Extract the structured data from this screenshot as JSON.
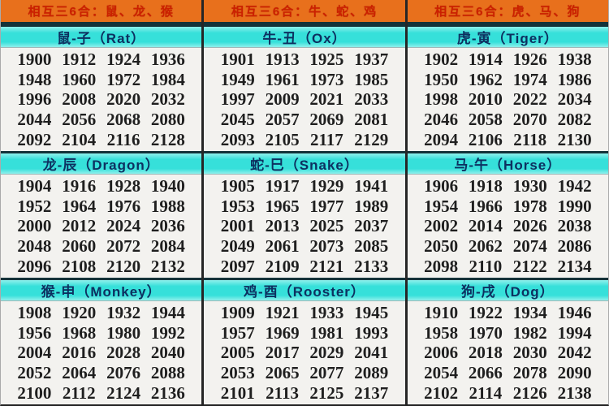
{
  "colors": {
    "orange_band": "#e8701c",
    "orange_text": "#cc2000",
    "cyan_band": "#3ee2dc",
    "zodiac_header_text": "#0d3060",
    "year_text": "#1f1f1f",
    "year_background": "#f3f2ef",
    "divider": "#262626"
  },
  "columns": [
    {
      "harmony_header": "相互三6合：鼠、龙、猴",
      "sections": [
        {
          "title": "鼠-子（Rat）",
          "years": [
            [
              "1900",
              "1912",
              "1924",
              "1936"
            ],
            [
              "1948",
              "1960",
              "1972",
              "1984"
            ],
            [
              "1996",
              "2008",
              "2020",
              "2032"
            ],
            [
              "2044",
              "2056",
              "2068",
              "2080"
            ],
            [
              "2092",
              "2104",
              "2116",
              "2128"
            ]
          ]
        },
        {
          "title": "龙-辰（Dragon）",
          "years": [
            [
              "1904",
              "1916",
              "1928",
              "1940"
            ],
            [
              "1952",
              "1964",
              "1976",
              "1988"
            ],
            [
              "2000",
              "2012",
              "2024",
              "2036"
            ],
            [
              "2048",
              "2060",
              "2072",
              "2084"
            ],
            [
              "2096",
              "2108",
              "2120",
              "2132"
            ]
          ]
        },
        {
          "title": "猴-申（Monkey）",
          "years": [
            [
              "1908",
              "1920",
              "1932",
              "1944"
            ],
            [
              "1956",
              "1968",
              "1980",
              "1992"
            ],
            [
              "2004",
              "2016",
              "2028",
              "2040"
            ],
            [
              "2052",
              "2064",
              "2076",
              "2088"
            ],
            [
              "2100",
              "2112",
              "2124",
              "2136"
            ]
          ]
        }
      ]
    },
    {
      "harmony_header": "相互三6合：牛、蛇、鸡",
      "sections": [
        {
          "title": "牛-丑（Ox）",
          "years": [
            [
              "1901",
              "1913",
              "1925",
              "1937"
            ],
            [
              "1949",
              "1961",
              "1973",
              "1985"
            ],
            [
              "1997",
              "2009",
              "2021",
              "2033"
            ],
            [
              "2045",
              "2057",
              "2069",
              "2081"
            ],
            [
              "2093",
              "2105",
              "2117",
              "2129"
            ]
          ]
        },
        {
          "title": "蛇-巳（Snake）",
          "years": [
            [
              "1905",
              "1917",
              "1929",
              "1941"
            ],
            [
              "1953",
              "1965",
              "1977",
              "1989"
            ],
            [
              "2001",
              "2013",
              "2025",
              "2037"
            ],
            [
              "2049",
              "2061",
              "2073",
              "2085"
            ],
            [
              "2097",
              "2109",
              "2121",
              "2133"
            ]
          ]
        },
        {
          "title": "鸡-酉（Rooster）",
          "years": [
            [
              "1909",
              "1921",
              "1933",
              "1945"
            ],
            [
              "1957",
              "1969",
              "1981",
              "1993"
            ],
            [
              "2005",
              "2017",
              "2029",
              "2041"
            ],
            [
              "2053",
              "2065",
              "2077",
              "2089"
            ],
            [
              "2101",
              "2113",
              "2125",
              "2137"
            ]
          ]
        }
      ]
    },
    {
      "harmony_header": "相互三6合：虎、马、狗",
      "sections": [
        {
          "title": "虎-寅（Tiger）",
          "years": [
            [
              "1902",
              "1914",
              "1926",
              "1938"
            ],
            [
              "1950",
              "1962",
              "1974",
              "1986"
            ],
            [
              "1998",
              "2010",
              "2022",
              "2034"
            ],
            [
              "2046",
              "2058",
              "2070",
              "2082"
            ],
            [
              "2094",
              "2106",
              "2118",
              "2130"
            ]
          ]
        },
        {
          "title": "马-午（Horse）",
          "years": [
            [
              "1906",
              "1918",
              "1930",
              "1942"
            ],
            [
              "1954",
              "1966",
              "1978",
              "1990"
            ],
            [
              "2002",
              "2014",
              "2026",
              "2038"
            ],
            [
              "2050",
              "2062",
              "2074",
              "2086"
            ],
            [
              "2098",
              "2110",
              "2122",
              "2134"
            ]
          ]
        },
        {
          "title": "狗-戌（Dog）",
          "years": [
            [
              "1910",
              "1922",
              "1934",
              "1946"
            ],
            [
              "1958",
              "1970",
              "1982",
              "1994"
            ],
            [
              "2006",
              "2018",
              "2030",
              "2042"
            ],
            [
              "2054",
              "2066",
              "2078",
              "2090"
            ],
            [
              "2102",
              "2114",
              "2126",
              "2138"
            ]
          ]
        }
      ]
    }
  ]
}
